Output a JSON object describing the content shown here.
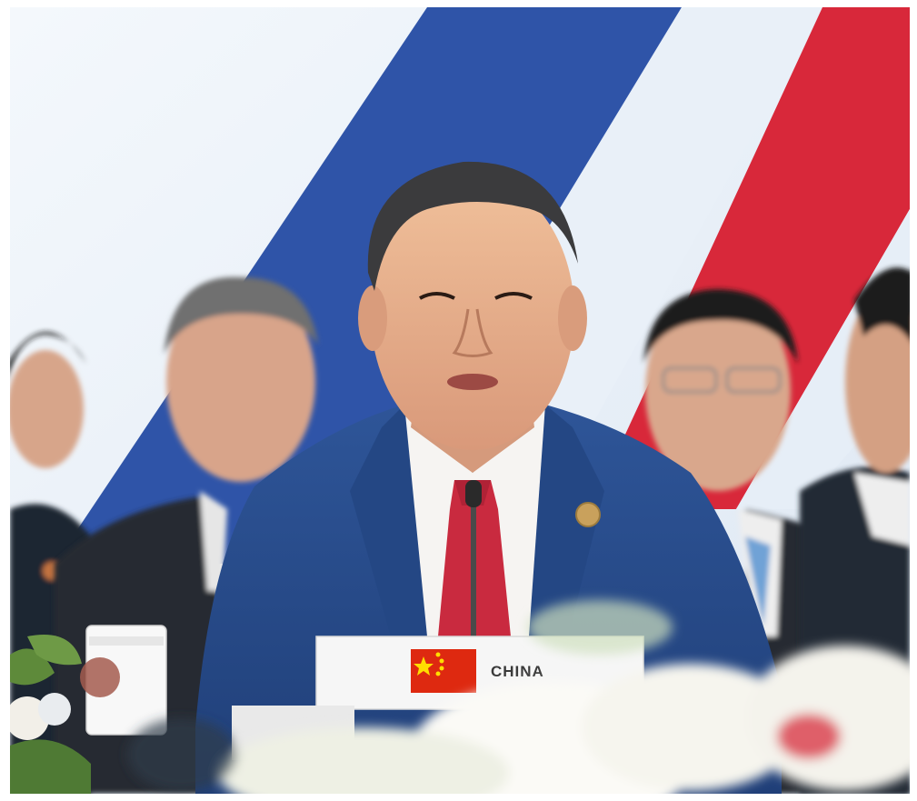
{
  "photo": {
    "nameplate": {
      "text": "CHINA"
    }
  },
  "colors": {
    "border": "#ffffff",
    "backdrop_light": "#e4edf6",
    "stripe_blue": "#2f54a8",
    "stripe_red": "#d8283a",
    "suit_blue": "#2c4f90",
    "tie_red": "#c92a3f",
    "flag_red": "#de2910",
    "flag_star": "#ffde00"
  }
}
